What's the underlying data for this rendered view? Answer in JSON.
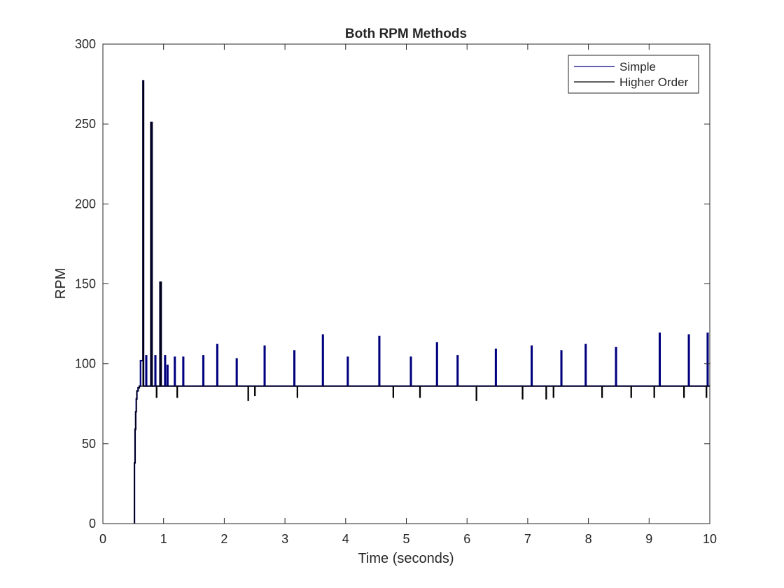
{
  "chart_data": {
    "type": "line",
    "title": "Both RPM Methods",
    "xlabel": "Time (seconds)",
    "ylabel": "RPM",
    "xlim": [
      0,
      10
    ],
    "ylim": [
      0,
      300
    ],
    "xticks": [
      0,
      1,
      2,
      3,
      4,
      5,
      6,
      7,
      8,
      9,
      10
    ],
    "yticks": [
      0,
      50,
      100,
      150,
      200,
      250,
      300
    ],
    "grid": false,
    "legend_position": "top-right",
    "baseline_rpm": 86,
    "series": [
      {
        "name": "Simple",
        "color": "#00007f",
        "x": [
          0.52,
          0.52,
          0.53,
          0.53,
          0.54,
          0.54,
          0.55,
          0.55,
          0.56,
          0.56,
          0.58,
          0.58,
          0.6,
          0.6,
          0.62,
          0.62,
          0.66,
          0.66,
          0.67,
          0.67,
          0.71,
          0.71,
          0.72,
          0.72,
          0.79,
          0.79,
          0.81,
          0.81,
          0.86,
          0.86,
          0.87,
          0.87,
          0.94,
          0.94,
          0.96,
          0.96,
          1.02,
          1.02,
          1.03,
          1.03,
          1.06,
          1.06,
          1.07,
          1.07,
          1.18,
          1.18,
          1.19,
          1.19,
          1.32,
          1.32,
          1.33,
          1.33,
          1.65,
          1.65,
          1.66,
          1.66,
          1.88,
          1.88,
          1.89,
          1.89,
          2.2,
          2.2,
          2.21,
          2.21,
          2.66,
          2.66,
          2.67,
          2.67,
          3.15,
          3.15,
          3.16,
          3.16,
          3.62,
          3.62,
          3.63,
          3.63,
          4.03,
          4.03,
          4.04,
          4.04,
          4.55,
          4.55,
          4.56,
          4.56,
          5.07,
          5.07,
          5.08,
          5.08,
          5.5,
          5.5,
          5.51,
          5.51,
          5.84,
          5.84,
          5.85,
          5.85,
          6.47,
          6.47,
          6.48,
          6.48,
          7.06,
          7.06,
          7.07,
          7.07,
          7.55,
          7.55,
          7.56,
          7.56,
          7.95,
          7.95,
          7.96,
          7.96,
          8.45,
          8.45,
          8.46,
          8.46,
          9.17,
          9.17,
          9.18,
          9.18,
          9.65,
          9.65,
          9.66,
          9.66,
          9.96,
          9.96,
          9.97,
          9.97,
          10.0
        ],
        "y": [
          0,
          38,
          38,
          59,
          59,
          70,
          70,
          78,
          78,
          83,
          83,
          85,
          85,
          86,
          86,
          102,
          102,
          277,
          277,
          86,
          86,
          105,
          105,
          86,
          86,
          251,
          251,
          86,
          86,
          105,
          105,
          86,
          86,
          151,
          151,
          86,
          86,
          105,
          105,
          86,
          86,
          99,
          99,
          86,
          86,
          104,
          104,
          86,
          86,
          104,
          104,
          86,
          86,
          105,
          105,
          86,
          86,
          112,
          112,
          86,
          86,
          103,
          103,
          86,
          86,
          111,
          111,
          86,
          86,
          108,
          108,
          86,
          86,
          118,
          118,
          86,
          86,
          104,
          104,
          86,
          86,
          117,
          117,
          86,
          86,
          104,
          104,
          86,
          86,
          113,
          113,
          86,
          86,
          105,
          105,
          86,
          86,
          109,
          109,
          86,
          86,
          111,
          111,
          86,
          86,
          108,
          108,
          86,
          86,
          112,
          112,
          86,
          86,
          110,
          110,
          86,
          86,
          119,
          119,
          86,
          86,
          118,
          118,
          86,
          86,
          119,
          119,
          86,
          86
        ]
      },
      {
        "name": "Higher Order",
        "color": "#000000",
        "x": [
          0.52,
          0.52,
          0.53,
          0.53,
          0.54,
          0.54,
          0.55,
          0.55,
          0.56,
          0.56,
          0.58,
          0.58,
          0.6,
          0.6,
          0.66,
          0.66,
          0.67,
          0.67,
          0.79,
          0.79,
          0.81,
          0.81,
          0.88,
          0.88,
          0.89,
          0.89,
          0.94,
          0.94,
          0.96,
          0.96,
          1.22,
          1.22,
          1.23,
          1.23,
          2.39,
          2.39,
          2.4,
          2.4,
          2.5,
          2.5,
          2.51,
          2.51,
          3.2,
          3.2,
          3.21,
          3.21,
          4.78,
          4.78,
          4.79,
          4.79,
          5.22,
          5.22,
          5.23,
          5.23,
          6.15,
          6.15,
          6.16,
          6.16,
          6.91,
          6.91,
          6.92,
          6.92,
          7.3,
          7.3,
          7.31,
          7.31,
          7.42,
          7.42,
          7.43,
          7.43,
          8.22,
          8.22,
          8.23,
          8.23,
          8.7,
          8.7,
          8.71,
          8.71,
          9.08,
          9.08,
          9.09,
          9.09,
          9.57,
          9.57,
          9.58,
          9.58,
          9.94,
          9.94,
          9.95,
          9.95,
          10.0
        ],
        "y": [
          0,
          38,
          38,
          59,
          59,
          70,
          70,
          78,
          78,
          83,
          83,
          85,
          85,
          86,
          86,
          277,
          277,
          86,
          86,
          251,
          251,
          86,
          86,
          79,
          79,
          86,
          86,
          151,
          151,
          86,
          86,
          79,
          79,
          86,
          86,
          77,
          77,
          86,
          86,
          80,
          80,
          86,
          86,
          79,
          79,
          86,
          86,
          79,
          79,
          86,
          86,
          79,
          79,
          86,
          86,
          77,
          77,
          86,
          86,
          78,
          78,
          86,
          86,
          78,
          78,
          86,
          86,
          79,
          79,
          86,
          86,
          79,
          79,
          86,
          86,
          79,
          79,
          86,
          86,
          79,
          79,
          86,
          86,
          79,
          79,
          86,
          86,
          79,
          79,
          86,
          86
        ]
      }
    ]
  }
}
